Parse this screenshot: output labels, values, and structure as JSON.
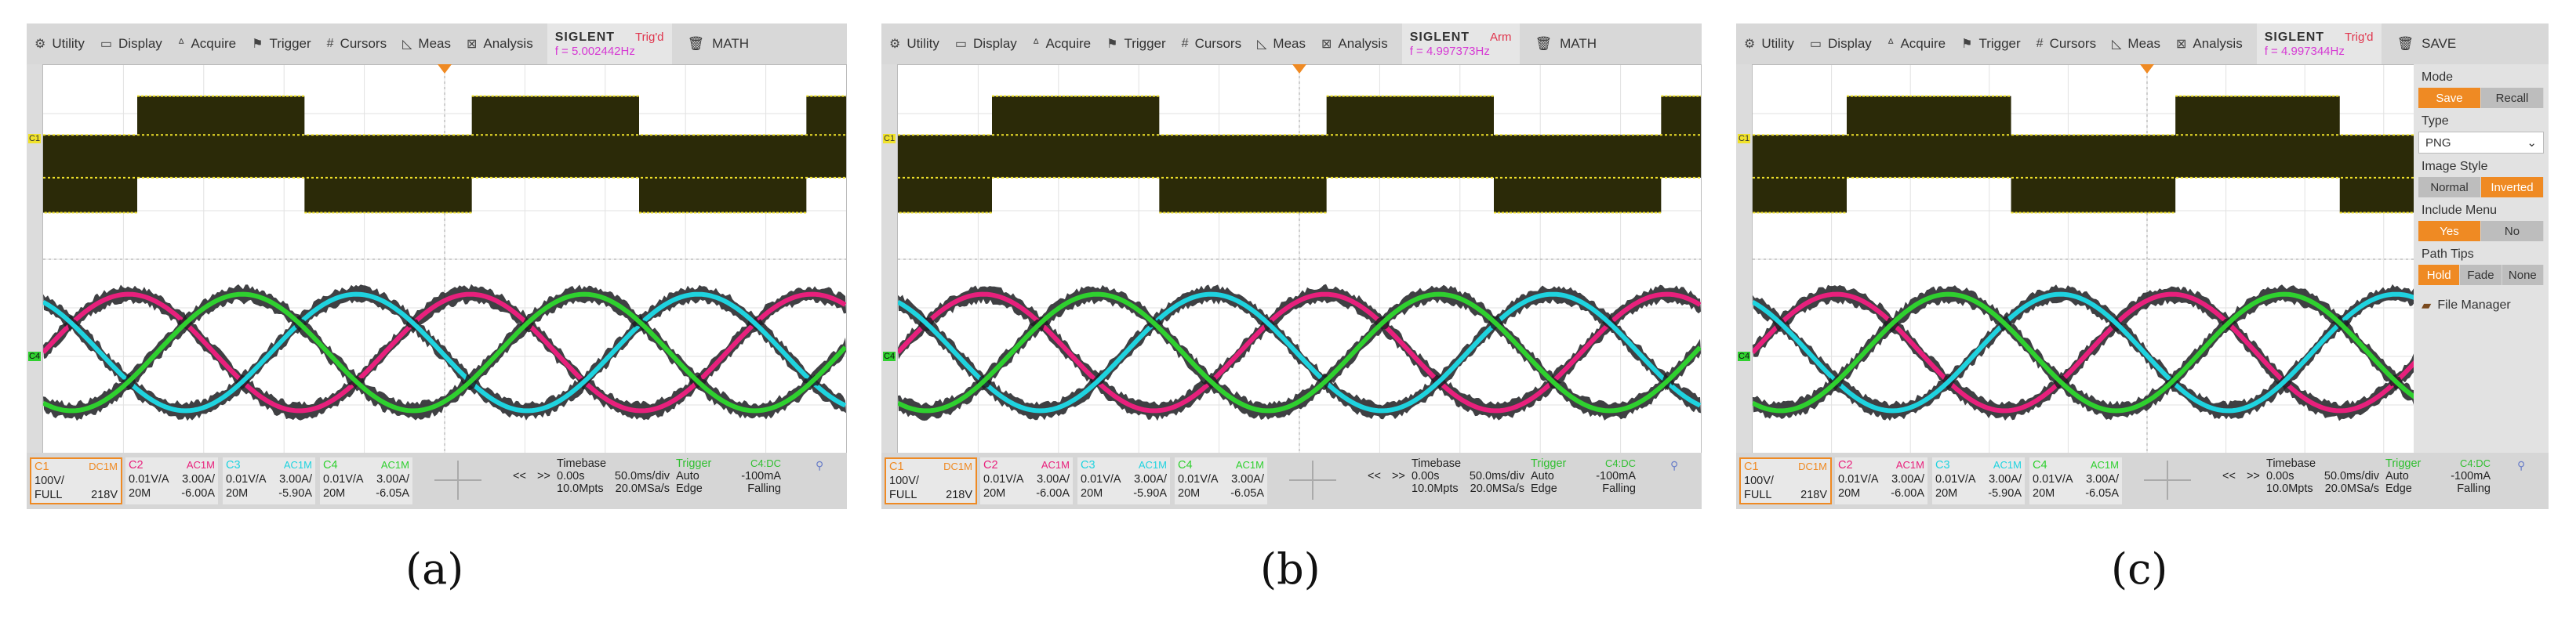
{
  "menu": [
    "Utility",
    "Display",
    "Acquire",
    "Trigger",
    "Cursors",
    "Meas",
    "Analysis"
  ],
  "menu_icons": [
    "gear-icon",
    "display-icon",
    "acquire-icon",
    "trigger-icon",
    "cursors-icon",
    "meas-icon",
    "analysis-icon"
  ],
  "brand": "SIGLENT",
  "channel_markers": {
    "c1": "C1",
    "c2": "C4"
  },
  "colors": {
    "c1": "#f0e22a",
    "c2": "#e8207c",
    "c3": "#1fd3df",
    "c4": "#2fd02f",
    "fill": "#2b2a08",
    "orange": "#ef8a23"
  },
  "panels": [
    {
      "state": "Trig'd",
      "freq": "f = 5.002442Hz",
      "right_label": "MATH",
      "caption": "(a)"
    },
    {
      "state": "Arm",
      "freq": "f = 4.997373Hz",
      "right_label": "MATH",
      "caption": "(b)"
    },
    {
      "state": "Trig'd",
      "freq": "f = 4.997344Hz",
      "right_label": "SAVE",
      "caption": "(c)"
    }
  ],
  "status": {
    "c1": {
      "name": "C1",
      "coupling": "DC1M",
      "scale": "100V/",
      "bw": "FULL",
      "offset": "218V"
    },
    "c2": {
      "name": "C2",
      "coupling": "AC1M",
      "scale": "0.01V/A",
      "probe": "3.00A/",
      "bw": "20M",
      "offset": "-6.00A"
    },
    "c3": {
      "name": "C3",
      "coupling": "AC1M",
      "scale": "0.01V/A",
      "probe": "3.00A/",
      "bw": "20M",
      "offset": "-5.90A"
    },
    "c4": {
      "name": "C4",
      "coupling": "AC1M",
      "scale": "0.01V/A",
      "probe": "3.00A/",
      "bw": "20M",
      "offset": "-6.05A"
    },
    "nav_prev": "<<",
    "nav_next": ">>",
    "timebase": {
      "title": "Timebase",
      "delay": "0.00s",
      "scale": "50.0ms/div",
      "mpts": "10.0Mpts",
      "rate": "20.0MSa/s"
    },
    "trigger": {
      "title": "Trigger",
      "src": "C4:DC",
      "mode": "Auto",
      "level": "-100mA",
      "type": "Edge",
      "slope": "Falling"
    }
  },
  "save_panel": {
    "mode_label": "Mode",
    "mode_options": [
      "Save",
      "Recall"
    ],
    "type_label": "Type",
    "type_value": "PNG",
    "style_label": "Image Style",
    "style_options": [
      "Normal",
      "Inverted"
    ],
    "menu_label": "Include Menu",
    "menu_options": [
      "Yes",
      "No"
    ],
    "tips_label": "Path Tips",
    "tips_options": [
      "Hold",
      "Fade",
      "None"
    ],
    "file_manager": "File Manager"
  }
}
